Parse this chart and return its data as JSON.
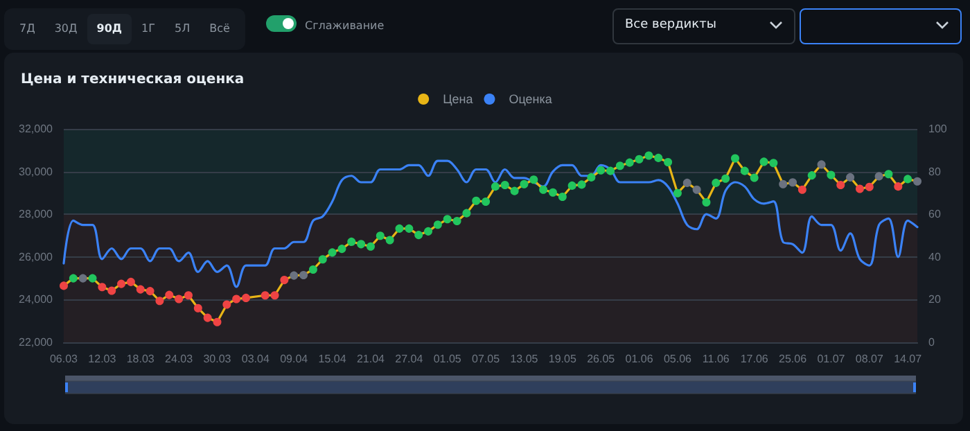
{
  "chart_data": {
    "type": "line",
    "title": "Цена и техническая оценка",
    "annotations": [
      "7Д",
      "30Д",
      "90Д",
      "1Г",
      "5Л",
      "Всё",
      "Сглаживание",
      "Все вердикты"
    ],
    "categories": [
      "06.03",
      null,
      null,
      null,
      "12.03",
      null,
      null,
      null,
      "18.03",
      null,
      null,
      null,
      "24.03",
      null,
      null,
      null,
      "30.03",
      null,
      null,
      null,
      "03.04",
      null,
      null,
      null,
      "09.04",
      null,
      null,
      null,
      "15.04",
      null,
      null,
      null,
      "21.04",
      null,
      null,
      null,
      "27.04",
      null,
      null,
      null,
      "01.05",
      null,
      null,
      null,
      "07.05",
      null,
      null,
      null,
      "13.05",
      null,
      null,
      null,
      "19.05",
      null,
      null,
      null,
      "26.05",
      null,
      null,
      null,
      "01.06",
      null,
      null,
      null,
      "05.06",
      null,
      null,
      null,
      "11.06",
      null,
      null,
      null,
      "17.06",
      null,
      null,
      null,
      "25.06",
      null,
      null,
      null,
      "01.07",
      null,
      null,
      null,
      "08.07",
      null,
      null,
      null,
      "14.07",
      null
    ],
    "series": [
      {
        "name": "Цена",
        "color": "#e8b516",
        "marker": "circle",
        "values": [
          24650,
          25000,
          25000,
          25000,
          24590,
          24420,
          24740,
          24830,
          24480,
          24400,
          23940,
          24220,
          24030,
          24200,
          23600,
          23150,
          22950,
          23770,
          24030,
          24080,
          null,
          24200,
          24200,
          24920,
          25130,
          25150,
          25410,
          25890,
          26210,
          26380,
          26710,
          26600,
          26490,
          26990,
          26790,
          27330,
          27330,
          27030,
          27200,
          27510,
          27770,
          27680,
          28050,
          28630,
          28590,
          29300,
          29370,
          29090,
          29410,
          29620,
          29150,
          29020,
          28820,
          29340,
          29390,
          29730,
          30060,
          30030,
          30270,
          30420,
          30580,
          30750,
          30640,
          30440,
          28990,
          29470,
          29150,
          28560,
          29470,
          29670,
          30620,
          30030,
          29710,
          30460,
          30400,
          29410,
          29490,
          29150,
          29820,
          30330,
          29840,
          29370,
          29730,
          29190,
          29280,
          29780,
          29880,
          29300,
          29650,
          29540
        ],
        "colors": [
          "#ef4444",
          "#22c55e",
          "#6b7280",
          "#22c55e",
          "#ef4444",
          "#ef4444",
          "#ef4444",
          "#ef4444",
          "#ef4444",
          "#ef4444",
          "#ef4444",
          "#ef4444",
          "#ef4444",
          "#ef4444",
          "#ef4444",
          "#ef4444",
          "#ef4444",
          "#ef4444",
          "#ef4444",
          "#ef4444",
          null,
          "#ef4444",
          "#ef4444",
          "#ef4444",
          "#6b7280",
          "#6b7280",
          "#22c55e",
          "#22c55e",
          "#22c55e",
          "#22c55e",
          "#22c55e",
          "#22c55e",
          "#22c55e",
          "#22c55e",
          "#22c55e",
          "#22c55e",
          "#22c55e",
          "#22c55e",
          "#22c55e",
          "#22c55e",
          "#22c55e",
          "#22c55e",
          "#22c55e",
          "#22c55e",
          "#22c55e",
          "#22c55e",
          "#22c55e",
          "#22c55e",
          "#22c55e",
          "#22c55e",
          "#22c55e",
          "#22c55e",
          "#22c55e",
          "#22c55e",
          "#22c55e",
          "#22c55e",
          "#22c55e",
          "#22c55e",
          "#22c55e",
          "#22c55e",
          "#22c55e",
          "#22c55e",
          "#22c55e",
          "#22c55e",
          "#22c55e",
          "#6b7280",
          "#6b7280",
          "#22c55e",
          "#22c55e",
          "#22c55e",
          "#22c55e",
          "#22c55e",
          "#22c55e",
          "#22c55e",
          "#22c55e",
          "#6b7280",
          "#6b7280",
          "#ef4444",
          "#22c55e",
          "#6b7280",
          "#22c55e",
          "#ef4444",
          "#6b7280",
          "#ef4444",
          "#ef4444",
          "#6b7280",
          "#22c55e",
          "#ef4444",
          "#22c55e",
          "#6b7280"
        ]
      },
      {
        "name": "Оценка",
        "color": "#3b82f6",
        "marker": "none",
        "axis": "y2",
        "values": [
          37,
          57,
          55,
          55,
          39,
          44,
          39,
          44,
          44,
          38,
          44,
          44,
          38,
          42,
          33,
          38,
          33,
          36,
          26,
          36,
          36,
          36,
          44,
          44,
          47,
          47,
          57,
          59,
          66,
          76,
          78,
          75,
          75,
          81,
          81,
          81,
          83,
          83,
          78,
          85,
          85,
          81,
          75,
          81,
          81,
          75,
          81,
          77,
          77,
          75,
          73,
          80,
          83,
          83,
          78,
          78,
          83,
          81,
          75,
          75,
          75,
          75,
          76,
          73,
          65,
          55,
          53,
          60,
          58,
          71,
          75,
          73,
          67,
          65,
          66,
          47,
          46,
          42,
          59,
          55,
          55,
          43,
          51,
          39,
          36,
          55,
          58,
          40,
          57,
          54
        ]
      }
    ],
    "ylim": [
      22000,
      32000
    ],
    "yticks": [
      {
        "value": 22000,
        "label": "22,000"
      },
      {
        "value": 24000,
        "label": "24,000"
      },
      {
        "value": 26000,
        "label": "26,000"
      },
      {
        "value": 28000,
        "label": "28,000"
      },
      {
        "value": 30000,
        "label": "30,000"
      },
      {
        "value": 32000,
        "label": "32,000"
      }
    ],
    "y2lim": [
      0,
      100
    ],
    "y2ticks": [
      0,
      20,
      40,
      60,
      80,
      100
    ],
    "bands": [
      {
        "axis": "y2",
        "from": 0,
        "to": 60,
        "color": "#241f24"
      },
      {
        "axis": "y2",
        "from": 60,
        "to": 100,
        "color": "#15282c"
      }
    ],
    "grid": "y",
    "legend": "top"
  }
}
